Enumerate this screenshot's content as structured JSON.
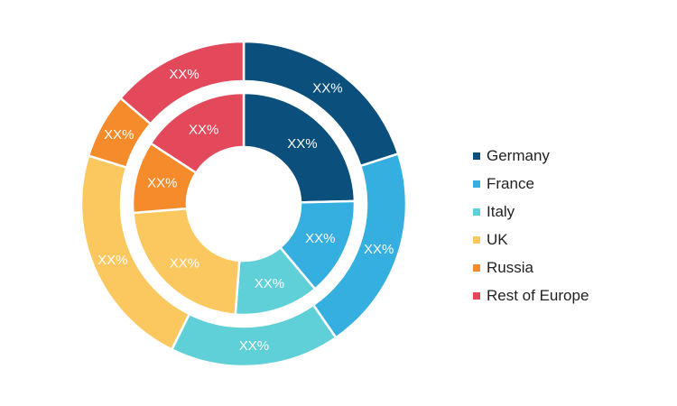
{
  "chart_data": {
    "type": "pie",
    "variant": "nested-donut",
    "categories": [
      "Germany",
      "France",
      "Italy",
      "UK",
      "Russia",
      "Rest of Europe"
    ],
    "colors": [
      "#0b4f7c",
      "#35afe0",
      "#5fcfd8",
      "#fbc75f",
      "#f58b2a",
      "#e3495b"
    ],
    "series": [
      {
        "ring": "outer",
        "values": [
          20.0,
          20.4,
          16.9,
          22.5,
          6.5,
          13.7
        ],
        "labels": [
          "XX%",
          "XX%",
          "XX%",
          "XX%",
          "XX%",
          "XX%"
        ]
      },
      {
        "ring": "inner",
        "values": [
          24.6,
          14.3,
          12.3,
          22.5,
          10.5,
          15.8
        ],
        "labels": [
          "XX%",
          "XX%",
          "XX%",
          "XX%",
          "XX%",
          "XX%"
        ]
      }
    ],
    "title": "",
    "legend_position": "right"
  }
}
